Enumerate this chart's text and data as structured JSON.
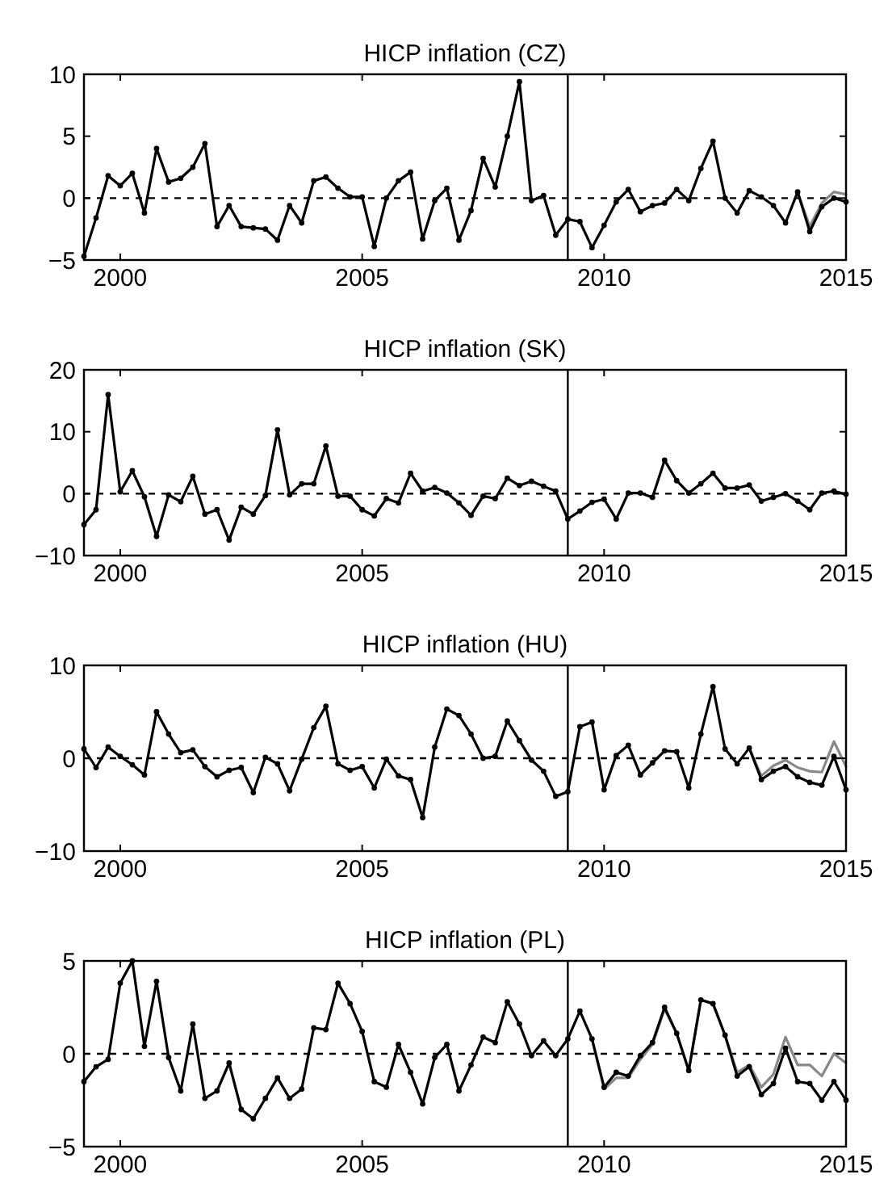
{
  "chart_data": [
    {
      "type": "line",
      "title": "HICP inflation (CZ)",
      "xlim": [
        1999.25,
        2015
      ],
      "xticks": [
        2000,
        2005,
        2010,
        2015
      ],
      "ylim": [
        -5,
        10
      ],
      "yticks": [
        -5,
        0,
        5,
        10
      ],
      "grid": false,
      "x": [
        1999.25,
        1999.5,
        1999.75,
        2000,
        2000.25,
        2000.5,
        2000.75,
        2001,
        2001.25,
        2001.5,
        2001.75,
        2002,
        2002.25,
        2002.5,
        2002.75,
        2003,
        2003.25,
        2003.5,
        2003.75,
        2004,
        2004.25,
        2004.5,
        2004.75,
        2005,
        2005.25,
        2005.5,
        2005.75,
        2006,
        2006.25,
        2006.5,
        2006.75,
        2007,
        2007.25,
        2007.5,
        2007.75,
        2008,
        2008.25,
        2008.5,
        2008.75,
        2009,
        2009.25,
        2009.5,
        2009.75,
        2010,
        2010.25,
        2010.5,
        2010.75,
        2011,
        2011.25,
        2011.5,
        2011.75,
        2012,
        2012.25,
        2012.5,
        2012.75,
        2013,
        2013.25,
        2013.5,
        2013.75,
        2014,
        2014.25,
        2014.5,
        2014.75,
        2015
      ],
      "ref_lines": [
        {
          "axis": "y",
          "value": 0,
          "color": "#000000",
          "line_style": "dashed"
        },
        {
          "axis": "x",
          "value": 2009.25,
          "color": "#000000",
          "line_style": "solid"
        }
      ],
      "series": [
        {
          "color": "#888888",
          "marker": "none",
          "x": [
            2014,
            2014.25,
            2014.5,
            2014.75,
            2015
          ],
          "values": [
            0.5,
            -2.3,
            -0.4,
            0.5,
            0.3
          ]
        },
        {
          "color": "#000000",
          "marker": "circle",
          "values": [
            -4.7,
            -1.6,
            1.8,
            1.0,
            2.0,
            -1.2,
            4.0,
            1.3,
            1.6,
            2.5,
            4.4,
            -2.3,
            -0.6,
            -2.3,
            -2.4,
            -2.5,
            -3.4,
            -0.6,
            -2.0,
            1.4,
            1.7,
            0.8,
            0.1,
            0.1,
            -3.9,
            0.0,
            1.4,
            2.1,
            -3.3,
            -0.2,
            0.8,
            -3.4,
            -1.0,
            3.2,
            0.9,
            5.0,
            9.4,
            -0.2,
            0.2,
            -3.0,
            -1.7,
            -1.9,
            -4.0,
            -2.2,
            -0.3,
            0.7,
            -1.1,
            -0.6,
            -0.4,
            0.7,
            -0.2,
            2.4,
            4.6,
            0.0,
            -1.2,
            0.6,
            0.1,
            -0.6,
            -2.0,
            0.5,
            -2.7,
            -0.7,
            0.0,
            -0.3
          ]
        }
      ]
    },
    {
      "type": "line",
      "title": "HICP inflation (SK)",
      "xlim": [
        1999.25,
        2015
      ],
      "xticks": [
        2000,
        2005,
        2010,
        2015
      ],
      "ylim": [
        -10,
        20
      ],
      "yticks": [
        -10,
        0,
        10,
        20
      ],
      "grid": false,
      "x": [
        1999.25,
        1999.5,
        1999.75,
        2000,
        2000.25,
        2000.5,
        2000.75,
        2001,
        2001.25,
        2001.5,
        2001.75,
        2002,
        2002.25,
        2002.5,
        2002.75,
        2003,
        2003.25,
        2003.5,
        2003.75,
        2004,
        2004.25,
        2004.5,
        2004.75,
        2005,
        2005.25,
        2005.5,
        2005.75,
        2006,
        2006.25,
        2006.5,
        2006.75,
        2007,
        2007.25,
        2007.5,
        2007.75,
        2008,
        2008.25,
        2008.5,
        2008.75,
        2009,
        2009.25,
        2009.5,
        2009.75,
        2010,
        2010.25,
        2010.5,
        2010.75,
        2011,
        2011.25,
        2011.5,
        2011.75,
        2012,
        2012.25,
        2012.5,
        2012.75,
        2013,
        2013.25,
        2013.5,
        2013.75,
        2014,
        2014.25,
        2014.5,
        2014.75,
        2015
      ],
      "ref_lines": [
        {
          "axis": "y",
          "value": 0,
          "color": "#000000",
          "line_style": "dashed"
        },
        {
          "axis": "x",
          "value": 2009.25,
          "color": "#000000",
          "line_style": "solid"
        }
      ],
      "series": [
        {
          "color": "#000000",
          "marker": "circle",
          "values": [
            -5.0,
            -2.6,
            16.0,
            0.3,
            3.7,
            -0.5,
            -6.9,
            -0.2,
            -1.3,
            2.8,
            -3.3,
            -2.6,
            -7.5,
            -2.2,
            -3.3,
            -0.3,
            10.3,
            -0.2,
            1.6,
            1.6,
            7.7,
            -0.4,
            -0.4,
            -2.6,
            -3.6,
            -0.8,
            -1.5,
            3.3,
            0.4,
            1.0,
            0.1,
            -1.5,
            -3.5,
            -0.4,
            -0.8,
            2.5,
            1.3,
            2.0,
            1.2,
            0.4,
            -4.1,
            -2.8,
            -1.4,
            -0.9,
            -4.1,
            0.1,
            0.1,
            -0.6,
            5.4,
            2.1,
            0.1,
            1.6,
            3.3,
            0.9,
            0.9,
            1.4,
            -1.2,
            -0.6,
            0.0,
            -1.2,
            -2.6,
            0.1,
            0.4,
            -0.1
          ]
        }
      ]
    },
    {
      "type": "line",
      "title": "HICP inflation (HU)",
      "xlim": [
        1999.25,
        2015
      ],
      "xticks": [
        2000,
        2005,
        2010,
        2015
      ],
      "ylim": [
        -10,
        10
      ],
      "yticks": [
        -10,
        0,
        10
      ],
      "grid": false,
      "x": [
        1999.25,
        1999.5,
        1999.75,
        2000,
        2000.25,
        2000.5,
        2000.75,
        2001,
        2001.25,
        2001.5,
        2001.75,
        2002,
        2002.25,
        2002.5,
        2002.75,
        2003,
        2003.25,
        2003.5,
        2003.75,
        2004,
        2004.25,
        2004.5,
        2004.75,
        2005,
        2005.25,
        2005.5,
        2005.75,
        2006,
        2006.25,
        2006.5,
        2006.75,
        2007,
        2007.25,
        2007.5,
        2007.75,
        2008,
        2008.25,
        2008.5,
        2008.75,
        2009,
        2009.25,
        2009.5,
        2009.75,
        2010,
        2010.25,
        2010.5,
        2010.75,
        2011,
        2011.25,
        2011.5,
        2011.75,
        2012,
        2012.25,
        2012.5,
        2012.75,
        2013,
        2013.25,
        2013.5,
        2013.75,
        2014,
        2014.25,
        2014.5,
        2014.75,
        2015
      ],
      "ref_lines": [
        {
          "axis": "y",
          "value": 0,
          "color": "#000000",
          "line_style": "dashed"
        },
        {
          "axis": "x",
          "value": 2009.25,
          "color": "#000000",
          "line_style": "solid"
        }
      ],
      "series": [
        {
          "color": "#888888",
          "marker": "none",
          "x": [
            2013,
            2013.25,
            2013.5,
            2013.75,
            2014,
            2014.25,
            2014.5,
            2014.75,
            2015
          ],
          "values": [
            1.1,
            -1.9,
            -0.8,
            -0.2,
            -1.0,
            -1.4,
            -1.5,
            1.8,
            -0.9
          ]
        },
        {
          "color": "#000000",
          "marker": "circle",
          "values": [
            1.0,
            -1.0,
            1.2,
            0.2,
            -0.7,
            -1.8,
            5.0,
            2.6,
            0.6,
            0.9,
            -0.9,
            -2.0,
            -1.3,
            -1.0,
            -3.7,
            0.1,
            -0.6,
            -3.5,
            -0.1,
            3.3,
            5.6,
            -0.6,
            -1.3,
            -0.9,
            -3.2,
            -0.1,
            -1.9,
            -2.3,
            -6.4,
            1.2,
            5.3,
            4.6,
            2.6,
            0.0,
            0.2,
            4.0,
            1.9,
            -0.2,
            -1.4,
            -4.1,
            -3.6,
            3.4,
            3.9,
            -3.4,
            0.3,
            1.4,
            -1.8,
            -0.5,
            0.8,
            0.7,
            -3.2,
            2.6,
            7.7,
            1.0,
            -0.6,
            1.1,
            -2.3,
            -1.4,
            -0.9,
            -2.0,
            -2.6,
            -2.9,
            0.2,
            -3.4
          ]
        }
      ]
    },
    {
      "type": "line",
      "title": "HICP inflation (PL)",
      "xlim": [
        1999.25,
        2015
      ],
      "xticks": [
        2000,
        2005,
        2010,
        2015
      ],
      "ylim": [
        -5,
        5
      ],
      "yticks": [
        -5,
        0,
        5
      ],
      "grid": false,
      "x": [
        1999.25,
        1999.5,
        1999.75,
        2000,
        2000.25,
        2000.5,
        2000.75,
        2001,
        2001.25,
        2001.5,
        2001.75,
        2002,
        2002.25,
        2002.5,
        2002.75,
        2003,
        2003.25,
        2003.5,
        2003.75,
        2004,
        2004.25,
        2004.5,
        2004.75,
        2005,
        2005.25,
        2005.5,
        2005.75,
        2006,
        2006.25,
        2006.5,
        2006.75,
        2007,
        2007.25,
        2007.5,
        2007.75,
        2008,
        2008.25,
        2008.5,
        2008.75,
        2009,
        2009.25,
        2009.5,
        2009.75,
        2010,
        2010.25,
        2010.5,
        2010.75,
        2011,
        2011.25,
        2011.5,
        2011.75,
        2012,
        2012.25,
        2012.5,
        2012.75,
        2013,
        2013.25,
        2013.5,
        2013.75,
        2014,
        2014.25,
        2014.5,
        2014.75,
        2015
      ],
      "ref_lines": [
        {
          "axis": "y",
          "value": 0,
          "color": "#000000",
          "line_style": "dashed"
        },
        {
          "axis": "x",
          "value": 2009.25,
          "color": "#000000",
          "line_style": "solid"
        }
      ],
      "series": [
        {
          "color": "#888888",
          "marker": "none",
          "x": [
            2009.75,
            2010,
            2010.25,
            2010.5,
            2010.75,
            2011,
            2011.25,
            2011.5,
            2011.75,
            2012,
            2012.25,
            2012.5,
            2012.75,
            2013,
            2013.25,
            2013.5,
            2013.75,
            2014,
            2014.25,
            2014.5,
            2014.75,
            2015
          ],
          "values": [
            0.8,
            -1.9,
            -1.3,
            -1.3,
            -0.3,
            0.5,
            2.4,
            1.1,
            -0.9,
            2.9,
            2.7,
            1.0,
            -1.0,
            -0.6,
            -1.8,
            -1.1,
            0.9,
            -0.6,
            -0.6,
            -1.2,
            0.0,
            -0.5
          ]
        },
        {
          "color": "#000000",
          "marker": "circle",
          "values": [
            -1.5,
            -0.7,
            -0.3,
            3.8,
            5.0,
            0.4,
            3.9,
            -0.2,
            -2.0,
            1.6,
            -2.4,
            -2.0,
            -0.5,
            -3.0,
            -3.5,
            -2.4,
            -1.3,
            -2.4,
            -1.9,
            1.4,
            1.3,
            3.8,
            2.7,
            1.2,
            -1.5,
            -1.8,
            0.5,
            -1.0,
            -2.7,
            -0.2,
            0.5,
            -2.0,
            -0.6,
            0.9,
            0.6,
            2.8,
            1.6,
            -0.1,
            0.7,
            -0.1,
            0.8,
            2.3,
            0.8,
            -1.8,
            -1.0,
            -1.2,
            -0.1,
            0.6,
            2.5,
            1.1,
            -0.9,
            2.9,
            2.7,
            1.0,
            -1.2,
            -0.7,
            -2.2,
            -1.6,
            0.3,
            -1.5,
            -1.6,
            -2.5,
            -1.5,
            -2.5
          ]
        }
      ]
    }
  ]
}
